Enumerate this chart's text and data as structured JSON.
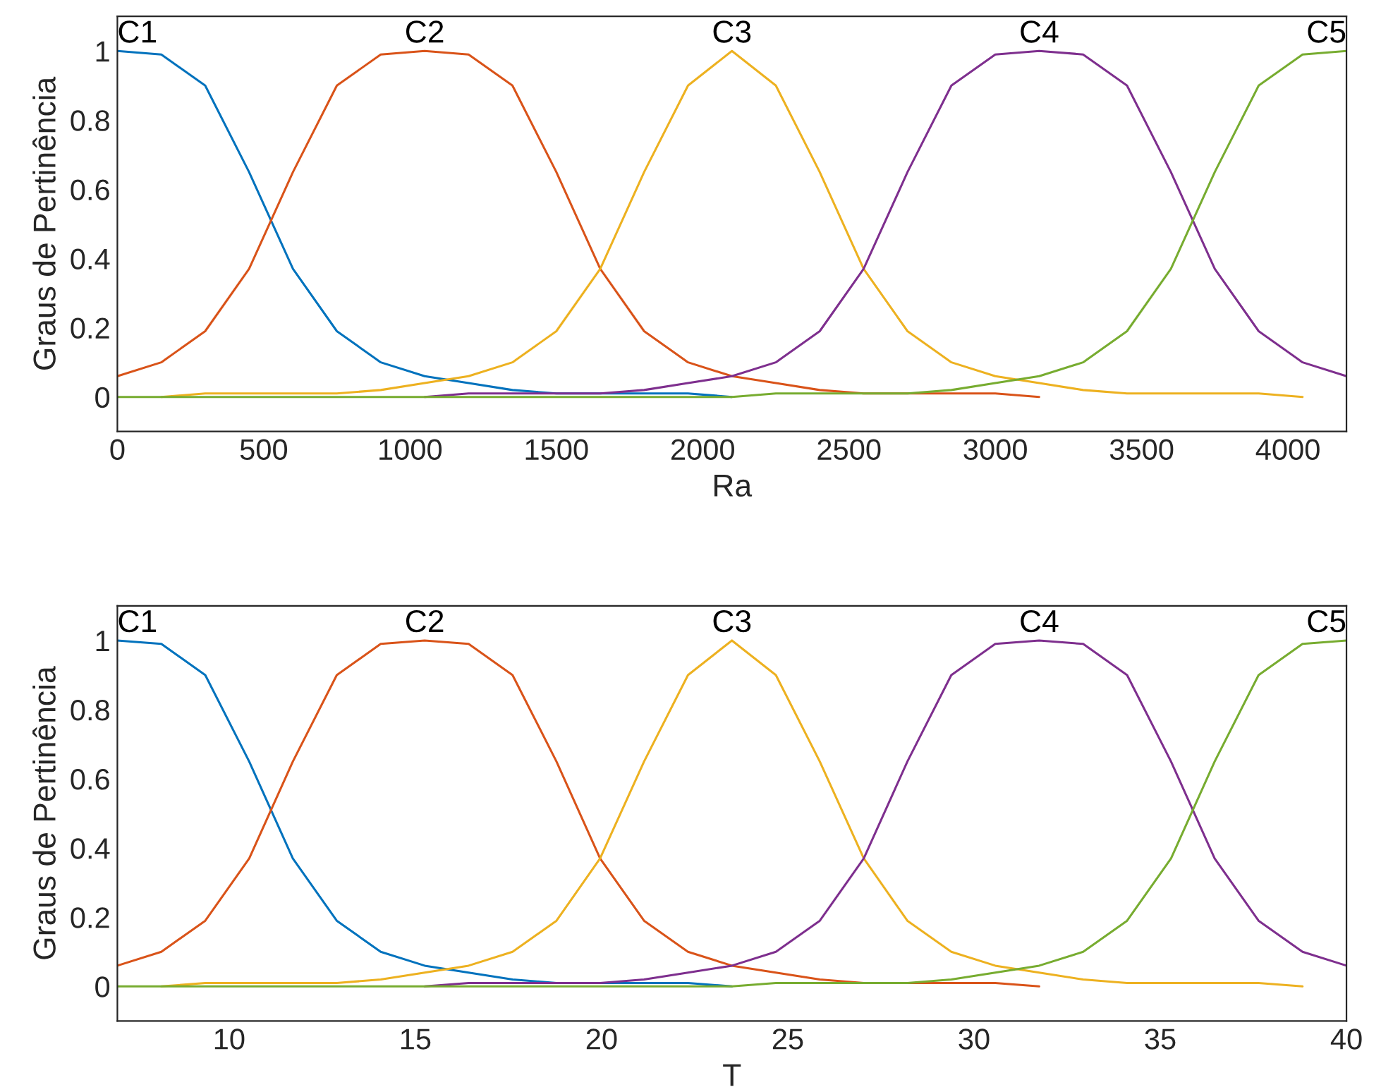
{
  "chart_data": [
    {
      "type": "line",
      "xlabel": "Ra",
      "ylabel": "Graus de Pertinência",
      "xlim": [
        0,
        4200
      ],
      "ylim": [
        -0.1,
        1.1
      ],
      "xticks": [
        0,
        500,
        1000,
        1500,
        2000,
        2500,
        3000,
        3500,
        4000
      ],
      "yticks": [
        0,
        {
          "value": 0.2,
          "label": "0.2"
        },
        {
          "value": 0.4,
          "label": "0.4"
        },
        {
          "value": 0.6,
          "label": "0.6"
        },
        {
          "value": 0.8,
          "label": "0.8"
        },
        1
      ],
      "x": [
        0,
        150,
        300,
        450,
        600,
        750,
        900,
        1050,
        1200,
        1350,
        1500,
        1650,
        1800,
        1950,
        2100,
        2250,
        2400,
        2550,
        2700,
        2850,
        3000,
        3150,
        3300,
        3450,
        3600,
        3750,
        3900,
        4050,
        4200
      ],
      "series": [
        {
          "name": "C1",
          "color": "#0072bd",
          "values": [
            1,
            0.99,
            0.9,
            0.65,
            0.37,
            0.19,
            0.1,
            0.06,
            0.04,
            0.02,
            0.01,
            0.01,
            0.01,
            0.01,
            0,
            null,
            null,
            null,
            null,
            null,
            null,
            null,
            null,
            null,
            null,
            null,
            null,
            null,
            null
          ]
        },
        {
          "name": "C2",
          "color": "#d95319",
          "values": [
            0.06,
            0.1,
            0.19,
            0.37,
            0.65,
            0.9,
            0.99,
            1,
            0.99,
            0.9,
            0.65,
            0.37,
            0.19,
            0.1,
            0.06,
            0.04,
            0.02,
            0.01,
            0.01,
            0.01,
            0.01,
            0,
            null,
            null,
            null,
            null,
            null,
            null,
            null
          ]
        },
        {
          "name": "C3",
          "color": "#edb120",
          "values": [
            null,
            0,
            0.01,
            0.01,
            0.01,
            0.01,
            0.02,
            0.04,
            0.06,
            0.1,
            0.19,
            0.37,
            0.65,
            0.9,
            1,
            0.9,
            0.65,
            0.37,
            0.19,
            0.1,
            0.06,
            0.04,
            0.02,
            0.01,
            0.01,
            0.01,
            0.01,
            0,
            null
          ]
        },
        {
          "name": "C4",
          "color": "#7e2f8e",
          "values": [
            null,
            null,
            null,
            null,
            null,
            null,
            null,
            0,
            0.01,
            0.01,
            0.01,
            0.01,
            0.02,
            0.04,
            0.06,
            0.1,
            0.19,
            0.37,
            0.65,
            0.9,
            0.99,
            1,
            0.99,
            0.9,
            0.65,
            0.37,
            0.19,
            0.1,
            0.06
          ]
        },
        {
          "name": "C5",
          "color": "#77ac30",
          "values": [
            0,
            0,
            0,
            0,
            0,
            0,
            0,
            0,
            0,
            0,
            0,
            0,
            0,
            0,
            0,
            0.01,
            0.01,
            0.01,
            0.01,
            0.02,
            0.04,
            0.06,
            0.1,
            0.19,
            0.37,
            0.65,
            0.9,
            0.99,
            1
          ]
        }
      ]
    },
    {
      "type": "line",
      "xlabel": "T",
      "ylabel": "Graus de Pertinência",
      "xlim": [
        7,
        40
      ],
      "ylim": [
        -0.1,
        1.1
      ],
      "xticks": [
        10,
        15,
        20,
        25,
        30,
        35,
        40
      ],
      "yticks": [
        0,
        {
          "value": 0.2,
          "label": "0.2"
        },
        {
          "value": 0.4,
          "label": "0.4"
        },
        {
          "value": 0.6,
          "label": "0.6"
        },
        {
          "value": 0.8,
          "label": "0.8"
        },
        1
      ],
      "x": [
        7,
        8.18,
        9.36,
        10.54,
        11.71,
        12.89,
        14.07,
        15.25,
        16.43,
        17.61,
        18.79,
        19.96,
        21.14,
        22.32,
        23.5,
        24.68,
        25.86,
        27.04,
        28.21,
        29.39,
        30.57,
        31.75,
        32.93,
        34.11,
        35.29,
        36.46,
        37.64,
        38.82,
        40
      ],
      "series": [
        {
          "name": "C1",
          "color": "#0072bd",
          "values": [
            1,
            0.99,
            0.9,
            0.65,
            0.37,
            0.19,
            0.1,
            0.06,
            0.04,
            0.02,
            0.01,
            0.01,
            0.01,
            0.01,
            0,
            null,
            null,
            null,
            null,
            null,
            null,
            null,
            null,
            null,
            null,
            null,
            null,
            null,
            null
          ]
        },
        {
          "name": "C2",
          "color": "#d95319",
          "values": [
            0.06,
            0.1,
            0.19,
            0.37,
            0.65,
            0.9,
            0.99,
            1,
            0.99,
            0.9,
            0.65,
            0.37,
            0.19,
            0.1,
            0.06,
            0.04,
            0.02,
            0.01,
            0.01,
            0.01,
            0.01,
            0,
            null,
            null,
            null,
            null,
            null,
            null,
            null
          ]
        },
        {
          "name": "C3",
          "color": "#edb120",
          "values": [
            null,
            0,
            0.01,
            0.01,
            0.01,
            0.01,
            0.02,
            0.04,
            0.06,
            0.1,
            0.19,
            0.37,
            0.65,
            0.9,
            1,
            0.9,
            0.65,
            0.37,
            0.19,
            0.1,
            0.06,
            0.04,
            0.02,
            0.01,
            0.01,
            0.01,
            0.01,
            0,
            null
          ]
        },
        {
          "name": "C4",
          "color": "#7e2f8e",
          "values": [
            null,
            null,
            null,
            null,
            null,
            null,
            null,
            0,
            0.01,
            0.01,
            0.01,
            0.01,
            0.02,
            0.04,
            0.06,
            0.1,
            0.19,
            0.37,
            0.65,
            0.9,
            0.99,
            1,
            0.99,
            0.9,
            0.65,
            0.37,
            0.19,
            0.1,
            0.06
          ]
        },
        {
          "name": "C5",
          "color": "#77ac30",
          "values": [
            0,
            0,
            0,
            0,
            0,
            0,
            0,
            0,
            0,
            0,
            0,
            0,
            0,
            0,
            0,
            0.01,
            0.01,
            0.01,
            0.01,
            0.02,
            0.04,
            0.06,
            0.1,
            0.19,
            0.37,
            0.65,
            0.9,
            0.99,
            1
          ]
        }
      ]
    }
  ]
}
